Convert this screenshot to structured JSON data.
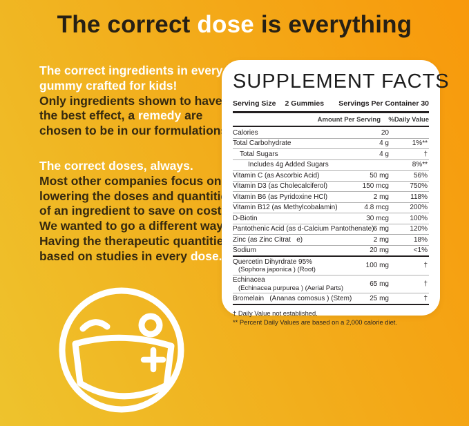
{
  "colors": {
    "bg_yellow": "#EEC32D",
    "bg_orange": "#F8990B",
    "text_dark": "#35290F",
    "text_white": "#FFFFFF",
    "panel_bg": "#FFFFFF",
    "panel_text": "#231F20"
  },
  "headline": {
    "segments": [
      {
        "text": "The correct ",
        "highlight": false
      },
      {
        "text": "dose",
        "highlight": true
      },
      {
        "text": " is everything",
        "highlight": false
      }
    ]
  },
  "paragraphs": [
    {
      "lines": [
        [
          {
            "text": "The correct ingredients in every",
            "hl": true
          }
        ],
        [
          {
            "text": "gummy crafted for kids!",
            "hl": true
          }
        ],
        [
          {
            "text": "Only ingredients shown to have",
            "hl": false
          }
        ],
        [
          {
            "text": "the best effect, a ",
            "hl": false
          },
          {
            "text": "remedy",
            "hl": true
          },
          {
            "text": " are",
            "hl": false
          }
        ],
        [
          {
            "text": "chosen to be in our formulations.",
            "hl": false
          }
        ]
      ]
    },
    {
      "lines": [
        [
          {
            "text": "The correct doses, always.",
            "hl": true
          }
        ],
        [
          {
            "text": "Most other companies focus on",
            "hl": false
          }
        ],
        [
          {
            "text": "lowering the doses and quantities",
            "hl": false
          }
        ],
        [
          {
            "text": "of an ingredient to save on cost.",
            "hl": false
          }
        ],
        [
          {
            "text": "We wanted to go a different way.",
            "hl": false
          }
        ],
        [
          {
            "text": "Having the therapeutic quantities",
            "hl": false
          }
        ],
        [
          {
            "text": "based on studies in every ",
            "hl": false
          },
          {
            "text": "dose.",
            "hl": true
          }
        ]
      ]
    }
  ],
  "panel": {
    "title": "SUPPLEMENT FACTS",
    "serving_size_label": "Serving Size",
    "serving_size_value": "2 Gummies",
    "servings_per_container": "Servings Per Container 30",
    "col_amount": "Amount Per Serving",
    "col_dv": "%Daily Value",
    "rows": [
      {
        "name": "Calories",
        "indent": 0,
        "amount": "20",
        "dv": "",
        "thick_after": false
      },
      {
        "name": "Total Carbohydrate",
        "indent": 0,
        "amount": "4 g",
        "dv": "1%**",
        "thick_after": false
      },
      {
        "name": "Total Sugars",
        "indent": 1,
        "amount": "4 g",
        "dv": "†",
        "thick_after": false
      },
      {
        "name": "Includes 4g Added Sugars",
        "indent": 2,
        "amount": "",
        "dv": "8%**",
        "thick_after": false
      },
      {
        "name": "Vitamin C (as Ascorbic Acid)",
        "indent": 0,
        "amount": "50 mg",
        "dv": "56%",
        "thick_after": false
      },
      {
        "name": "Vitamin D3 (as Cholecalciferol)",
        "indent": 0,
        "amount": "150 mcg",
        "dv": "750%",
        "thick_after": false
      },
      {
        "name": "Vitamin B6 (as Pyridoxine HCl)",
        "indent": 0,
        "amount": "2 mg",
        "dv": "118%",
        "thick_after": false
      },
      {
        "name": "Vitamin B12 (as Methylcobalamin)",
        "indent": 0,
        "amount": "4.8 mcg",
        "dv": "200%",
        "thick_after": false
      },
      {
        "name": "D-Biotin",
        "indent": 0,
        "amount": "30 mcg",
        "dv": "100%",
        "thick_after": false
      },
      {
        "name": "Pantothenic Acid (as d-Calcium Pantothenate)",
        "indent": 0,
        "amount": "6 mg",
        "dv": "120%",
        "thick_after": false
      },
      {
        "name": "Zinc (as Zinc Citrat   e)",
        "indent": 0,
        "amount": "2 mg",
        "dv": "18%",
        "thick_after": false
      },
      {
        "name": "Sodium",
        "indent": 0,
        "amount": "20 mg",
        "dv": "<1%",
        "thick_after": true
      },
      {
        "name": "Quercetin Dihyrdrate 95%",
        "sub": "(Sophora japonica ) (Root)",
        "indent": 0,
        "amount": "100 mg",
        "dv": "†",
        "thick_after": false
      },
      {
        "name": "Echinacea",
        "sub": "(Echinacea purpurea ) (Aerial Parts)",
        "indent": 0,
        "amount": "65 mg",
        "dv": "†",
        "thick_after": false
      },
      {
        "name": "Bromelain   (Ananas comosus ) (Stem)",
        "indent": 0,
        "amount": "25 mg",
        "dv": "†",
        "thick_after": true
      }
    ],
    "footnotes": [
      "† Daily Value not established.",
      "** Percent Daily Values are based on a 2,000 calorie diet."
    ]
  },
  "icon": {
    "name": "winking-face-with-medical-mask"
  }
}
